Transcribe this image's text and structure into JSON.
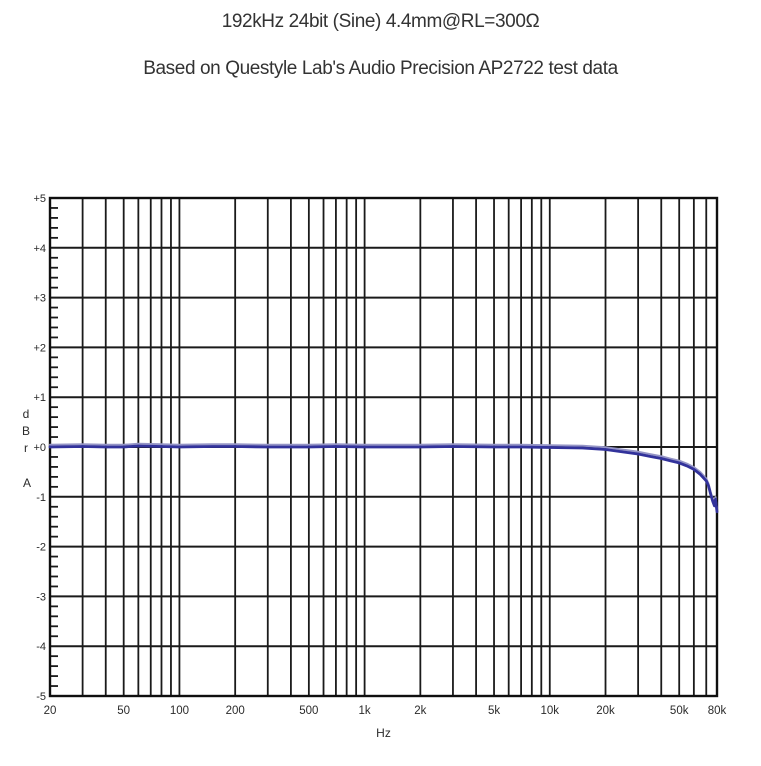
{
  "titles": {
    "line1": "192kHz 24bit (Sine) 4.4mm@RL=300Ω",
    "line2": "Based on Questyle Lab's Audio Precision AP2722 test data"
  },
  "colors": {
    "background": "#ffffff",
    "grid": "#1a1a1a",
    "frame": "#0f0f0f",
    "text": "#2b2b2b",
    "curve_main": "#32329b",
    "curve_shadow": "#9595c6"
  },
  "chart_data": {
    "type": "line",
    "title": "192kHz 24bit (Sine) 4.4mm@RL=300Ω",
    "subtitle": "Based on Questyle Lab's Audio Precision AP2722 test data",
    "grid": "on",
    "legend": "none",
    "x_axis": {
      "label": "Hz",
      "scale": "log",
      "min": 20,
      "max": 80000,
      "gridlines": [
        20,
        30,
        40,
        50,
        60,
        70,
        80,
        90,
        100,
        200,
        300,
        400,
        500,
        600,
        700,
        800,
        900,
        1000,
        2000,
        3000,
        4000,
        5000,
        6000,
        7000,
        8000,
        9000,
        10000,
        20000,
        30000,
        40000,
        50000,
        60000,
        70000,
        80000
      ],
      "ticks": [
        {
          "value": 20,
          "label": "20"
        },
        {
          "value": 50,
          "label": "50"
        },
        {
          "value": 100,
          "label": "100"
        },
        {
          "value": 200,
          "label": "200"
        },
        {
          "value": 500,
          "label": "500"
        },
        {
          "value": 1000,
          "label": "1k"
        },
        {
          "value": 2000,
          "label": "2k"
        },
        {
          "value": 5000,
          "label": "5k"
        },
        {
          "value": 10000,
          "label": "10k"
        },
        {
          "value": 20000,
          "label": "20k"
        },
        {
          "value": 50000,
          "label": "50k"
        },
        {
          "value": 80000,
          "label": "80k"
        }
      ]
    },
    "y_axis": {
      "unit_vertical": [
        "d",
        "B",
        "r"
      ],
      "unit_suffix": "A",
      "min": -5,
      "max": 5,
      "major_step": 1,
      "minor_step": 0.2,
      "ticks": [
        {
          "value": 5,
          "label": "+5"
        },
        {
          "value": 4,
          "label": "+4"
        },
        {
          "value": 3,
          "label": "+3"
        },
        {
          "value": 2,
          "label": "+2"
        },
        {
          "value": 1,
          "label": "+1"
        },
        {
          "value": 0,
          "label": "+0"
        },
        {
          "value": -1,
          "label": "-1"
        },
        {
          "value": -2,
          "label": "-2"
        },
        {
          "value": -3,
          "label": "-3"
        },
        {
          "value": -4,
          "label": "-4"
        },
        {
          "value": -5,
          "label": "-5"
        }
      ]
    },
    "series": [
      {
        "name": "frequency-response-shadow",
        "color": "#9595c6",
        "width": 2,
        "offset_db": 0.045,
        "points": []
      },
      {
        "name": "frequency-response-main",
        "color": "#32329b",
        "width": 2.8,
        "offset_db": 0,
        "points": [
          [
            20,
            0.0
          ],
          [
            30,
            0.01
          ],
          [
            40,
            0.0
          ],
          [
            50,
            0.0
          ],
          [
            60,
            0.02
          ],
          [
            80,
            0.01
          ],
          [
            100,
            0.0
          ],
          [
            150,
            0.01
          ],
          [
            200,
            0.01
          ],
          [
            300,
            0.0
          ],
          [
            500,
            0.0
          ],
          [
            700,
            0.01
          ],
          [
            1000,
            0.0
          ],
          [
            2000,
            0.0
          ],
          [
            3000,
            0.01
          ],
          [
            5000,
            0.0
          ],
          [
            7000,
            0.0
          ],
          [
            10000,
            -0.01
          ],
          [
            15000,
            -0.02
          ],
          [
            20000,
            -0.05
          ],
          [
            25000,
            -0.1
          ],
          [
            30000,
            -0.14
          ],
          [
            35000,
            -0.19
          ],
          [
            40000,
            -0.23
          ],
          [
            45000,
            -0.28
          ],
          [
            50000,
            -0.32
          ],
          [
            55000,
            -0.38
          ],
          [
            60000,
            -0.45
          ],
          [
            65000,
            -0.55
          ],
          [
            70000,
            -0.68
          ],
          [
            72000,
            -0.78
          ],
          [
            74000,
            -0.95
          ],
          [
            76000,
            -1.1
          ],
          [
            77500,
            -1.18
          ],
          [
            78500,
            -1.05
          ],
          [
            79500,
            -1.22
          ],
          [
            80000,
            -1.3
          ]
        ]
      }
    ]
  }
}
